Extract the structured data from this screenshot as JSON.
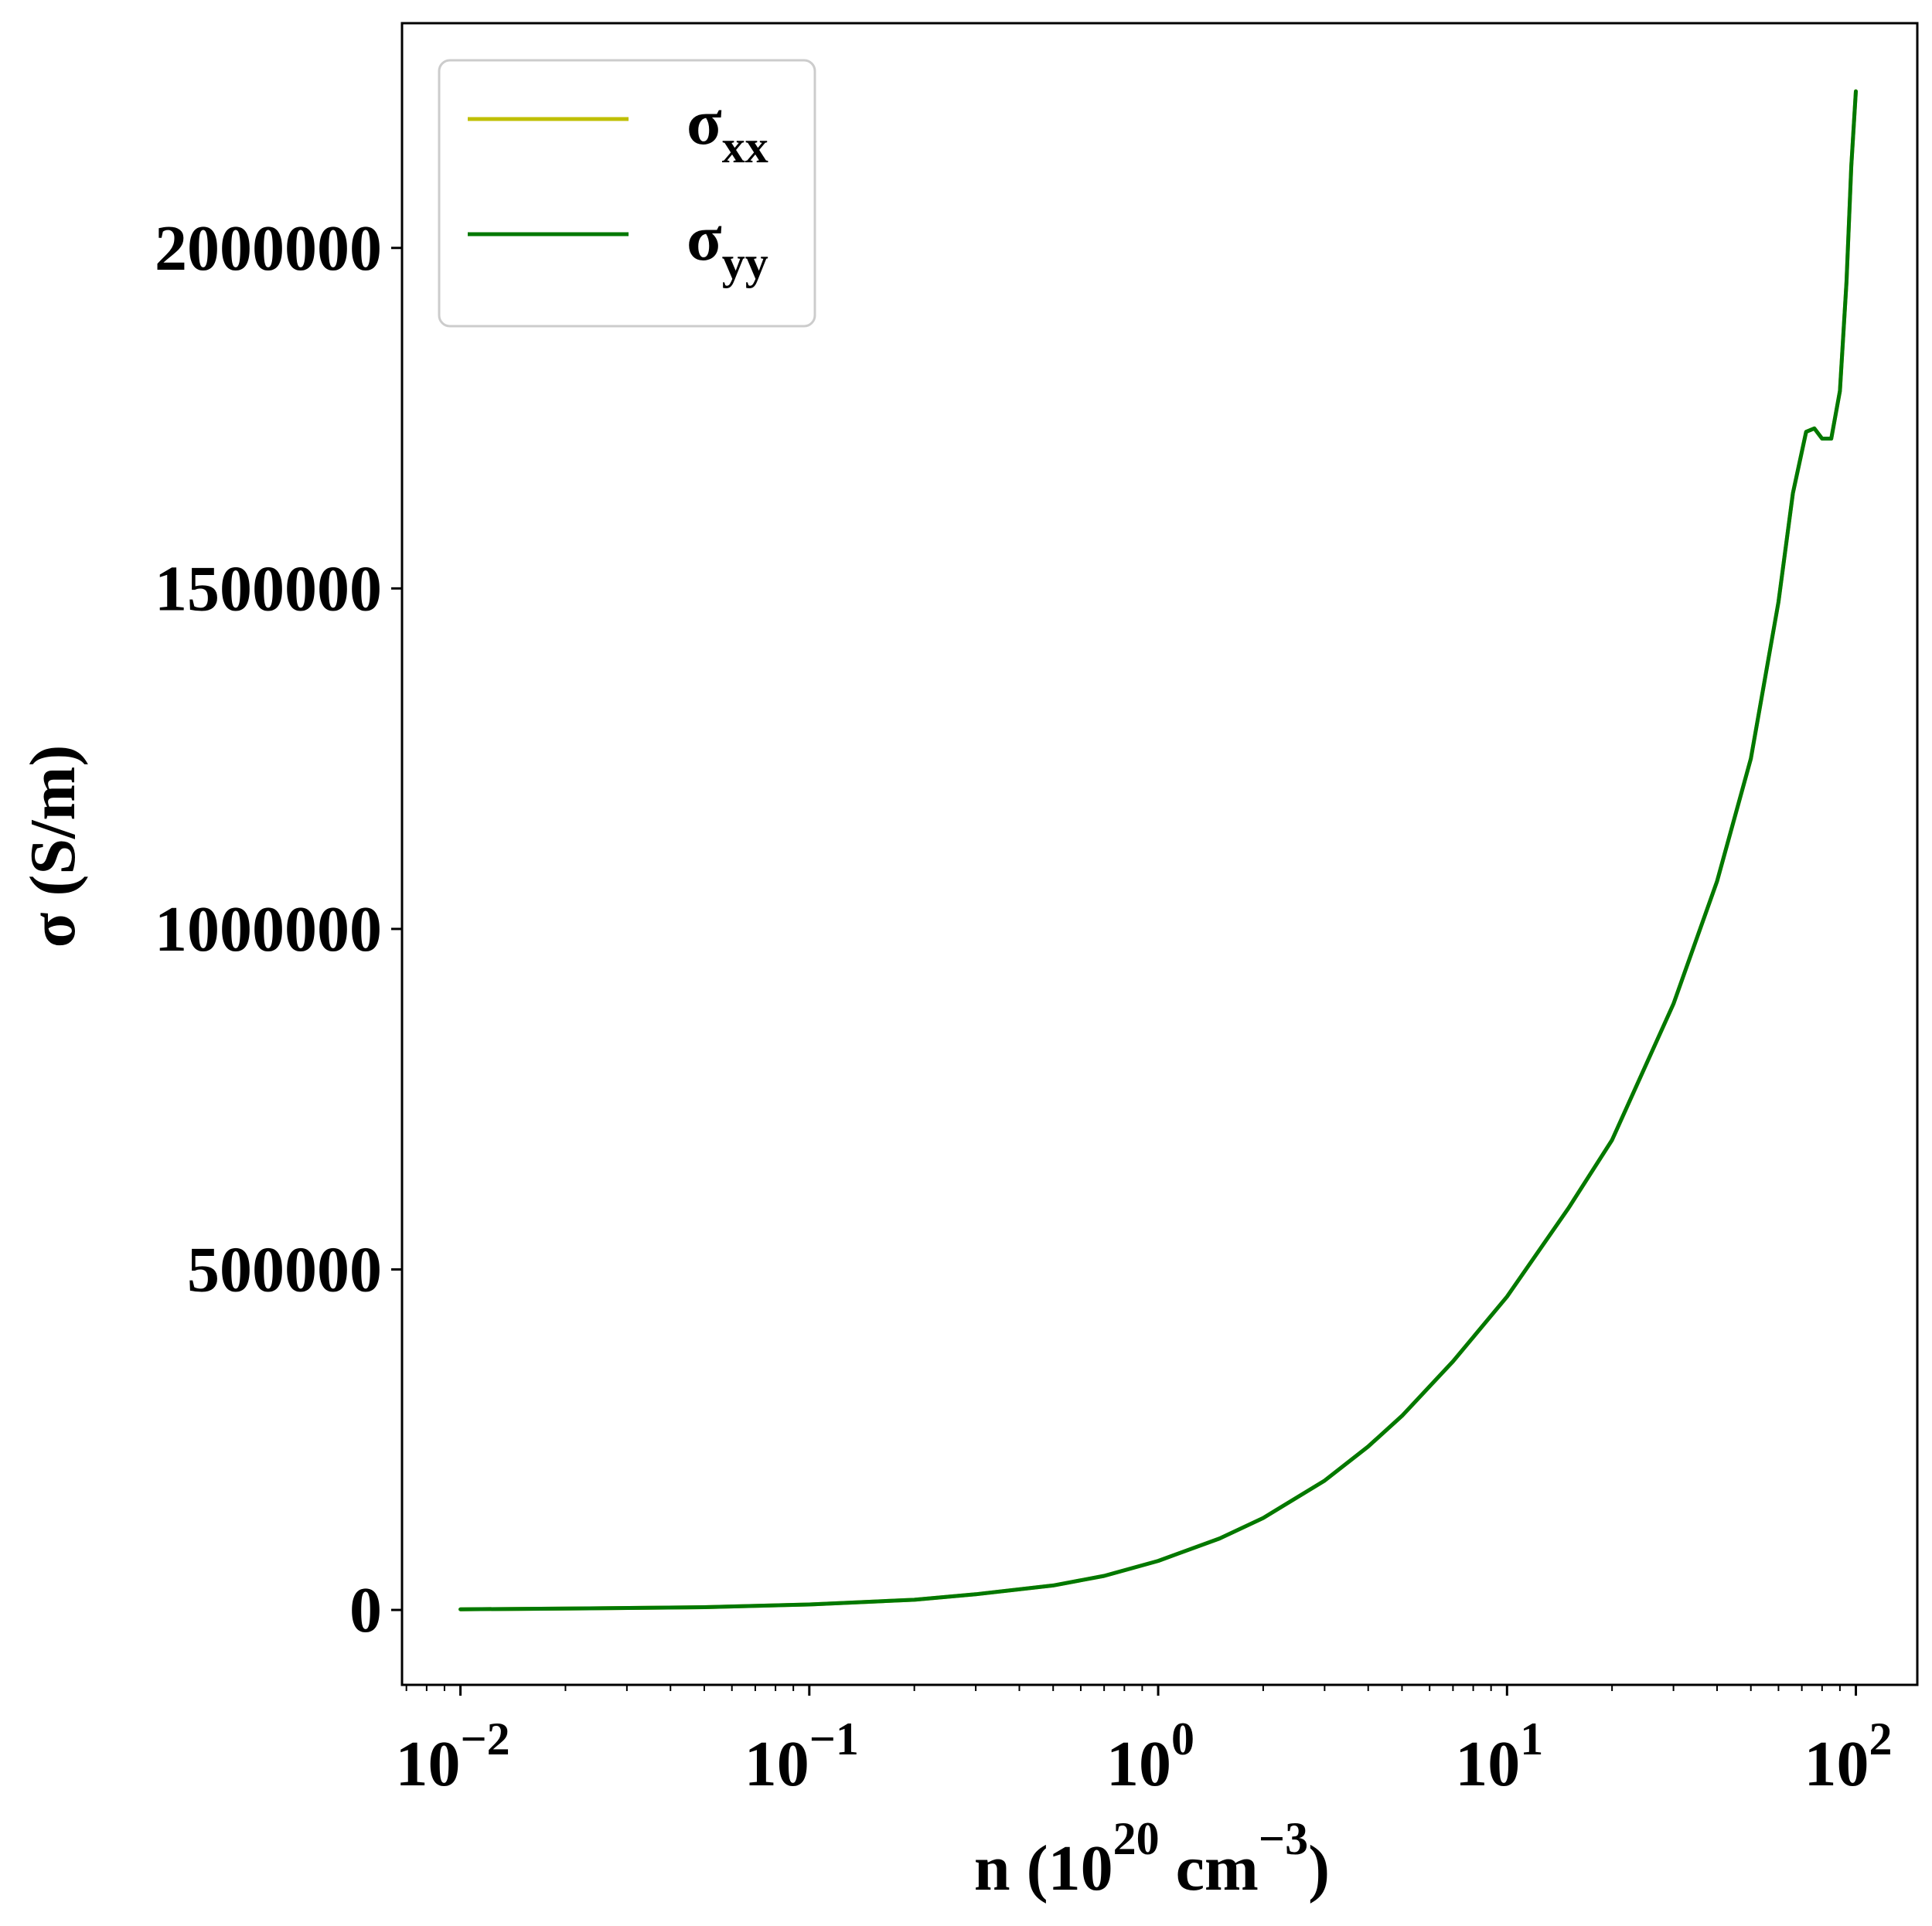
{
  "chart_data": {
    "type": "line",
    "xscale": "log",
    "xlim": [
      0.0068,
      150
    ],
    "ylim": [
      -110000,
      2330000
    ],
    "x_ticks": [
      {
        "value": 0.01,
        "base": "10",
        "exp": "−2"
      },
      {
        "value": 0.1,
        "base": "10",
        "exp": "−1"
      },
      {
        "value": 1,
        "base": "10",
        "exp": "0"
      },
      {
        "value": 10,
        "base": "10",
        "exp": "1"
      },
      {
        "value": 100,
        "base": "10",
        "exp": "2"
      }
    ],
    "y_ticks": [
      {
        "value": 0,
        "label": "0"
      },
      {
        "value": 500000,
        "label": "500000"
      },
      {
        "value": 1000000,
        "label": "1000000"
      },
      {
        "value": 1500000,
        "label": "1500000"
      },
      {
        "value": 2000000,
        "label": "2000000"
      }
    ],
    "xlabel": {
      "pre": "n (10",
      "sup1": "20",
      "mid": " cm",
      "sup2": "−3",
      "post": ")"
    },
    "ylabel": "σ (S/m)",
    "legend_position": "upper-left",
    "grid": false,
    "series": [
      {
        "name": "σxx",
        "legend": {
          "base": "σ",
          "sub": "xx"
        },
        "color": "#bfbf00",
        "x": [
          0.01,
          0.02,
          0.05,
          0.1,
          0.2,
          0.3,
          0.5,
          0.7,
          1,
          1.5,
          2,
          3,
          4,
          5,
          7,
          10,
          15,
          20,
          30,
          40,
          50,
          60,
          66,
          72,
          76,
          80,
          85,
          90,
          94,
          97,
          100
        ],
        "y": [
          1000,
          2000,
          4000,
          8000,
          15000,
          23000,
          36000,
          50000,
          72000,
          105000,
          135000,
          190000,
          240000,
          285000,
          365000,
          460000,
          590000,
          690000,
          890000,
          1070000,
          1250000,
          1480000,
          1640000,
          1730000,
          1735000,
          1720000,
          1720000,
          1790000,
          1950000,
          2120000,
          2230000
        ]
      },
      {
        "name": "σyy",
        "legend": {
          "base": "σ",
          "sub": "yy"
        },
        "color": "#007800",
        "x": [
          0.01,
          0.02,
          0.05,
          0.1,
          0.2,
          0.3,
          0.5,
          0.7,
          1,
          1.5,
          2,
          3,
          4,
          5,
          7,
          10,
          15,
          20,
          30,
          40,
          50,
          60,
          66,
          72,
          76,
          80,
          85,
          90,
          94,
          97,
          100
        ],
        "y": [
          1000,
          2000,
          4000,
          8000,
          15000,
          23000,
          36000,
          50000,
          72000,
          105000,
          135000,
          190000,
          240000,
          285000,
          365000,
          460000,
          590000,
          690000,
          890000,
          1070000,
          1250000,
          1480000,
          1640000,
          1730000,
          1735000,
          1720000,
          1720000,
          1790000,
          1950000,
          2120000,
          2230000
        ]
      }
    ]
  }
}
